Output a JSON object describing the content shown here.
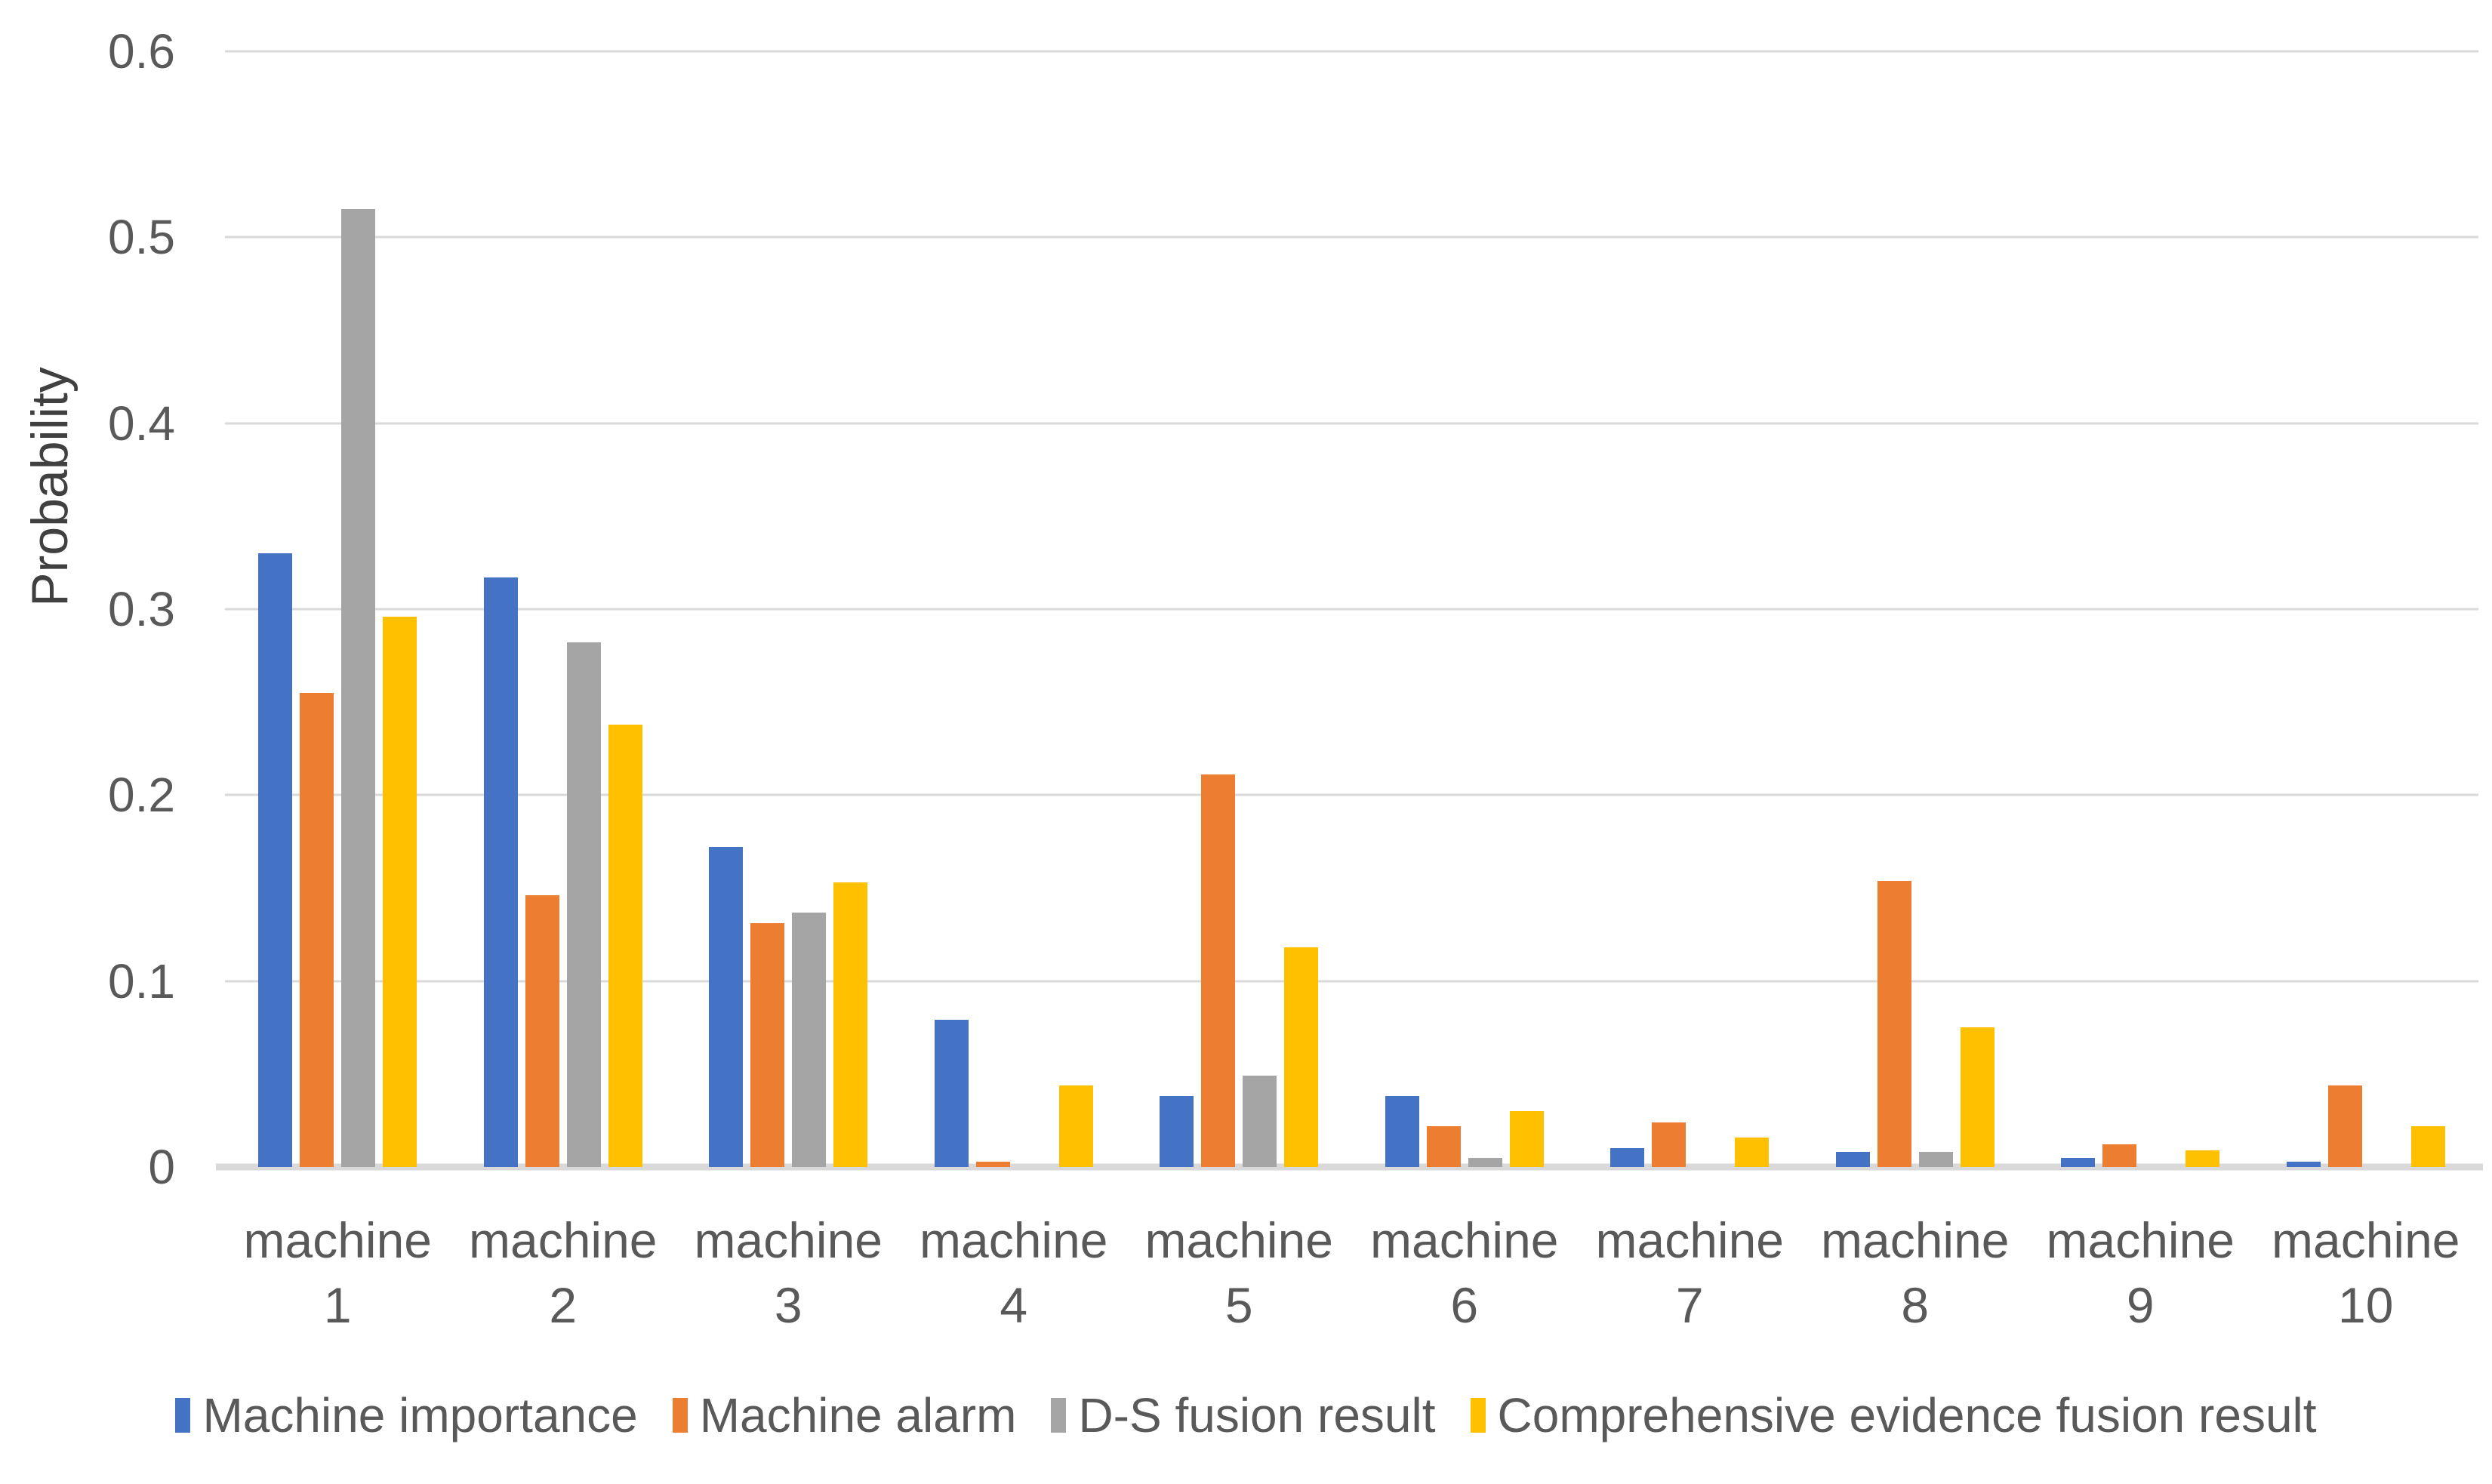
{
  "chart_data": {
    "type": "bar",
    "title": "",
    "ylabel": "Probability",
    "xlabel": "",
    "ylim": [
      0,
      0.6
    ],
    "yticks": [
      "0.6",
      "0.5",
      "0.4",
      "0.3",
      "0.2",
      "0.1",
      "0"
    ],
    "grid": true,
    "legend_position": "bottom",
    "categories": [
      [
        "machine",
        "1"
      ],
      [
        "machine",
        "2"
      ],
      [
        "machine",
        "3"
      ],
      [
        "machine",
        "4"
      ],
      [
        "machine",
        "5"
      ],
      [
        "machine",
        "6"
      ],
      [
        "machine",
        "7"
      ],
      [
        "machine",
        "8"
      ],
      [
        "machine",
        "9"
      ],
      [
        "machine",
        "10"
      ]
    ],
    "series": [
      {
        "name": "Machine importance",
        "color": "#4472C4",
        "values": [
          0.33,
          0.317,
          0.172,
          0.079,
          0.038,
          0.038,
          0.01,
          0.008,
          0.005,
          0.003
        ]
      },
      {
        "name": "Machine alarm",
        "color": "#ED7D31",
        "values": [
          0.255,
          0.146,
          0.131,
          0.003,
          0.211,
          0.022,
          0.024,
          0.154,
          0.012,
          0.044
        ]
      },
      {
        "name": "D-S fusion result",
        "color": "#A5A5A5",
        "values": [
          0.515,
          0.282,
          0.137,
          0,
          0.049,
          0.005,
          0,
          0.008,
          0,
          0
        ]
      },
      {
        "name": "Comprehensive evidence fusion result",
        "color": "#FFC000",
        "values": [
          0.296,
          0.238,
          0.153,
          0.044,
          0.118,
          0.03,
          0.016,
          0.075,
          0.009,
          0.022
        ]
      }
    ],
    "colors": {
      "gridline": "#D9D9D9",
      "axis_line": "#D9D9D9",
      "tick_text": "#595959",
      "axis_title_text": "#404040",
      "legend_text": "#595959",
      "background": "#FFFFFF"
    }
  }
}
